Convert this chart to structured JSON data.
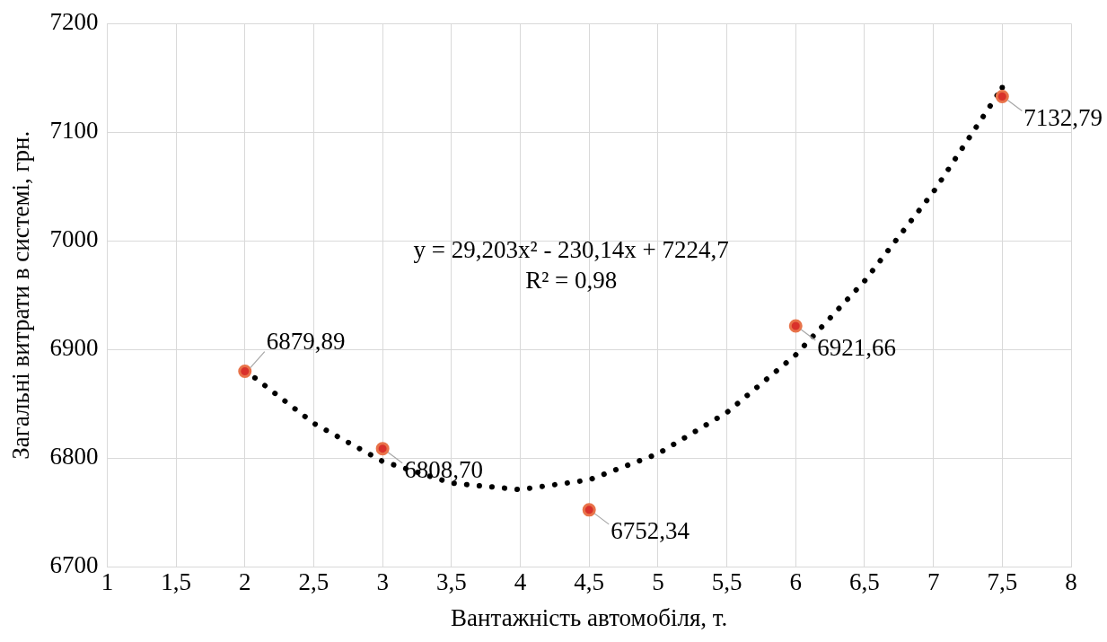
{
  "chart_data": {
    "type": "scatter",
    "xlabel": "Вантажність автомобіля, т.",
    "ylabel": "Загальні витрати в системі, грн.",
    "annotations": [
      "y = 29,203x² - 230,14x + 7224,7",
      "R² = 0,98"
    ],
    "xlim": [
      1,
      8
    ],
    "xticks": [
      1,
      {
        "value": 1.5,
        "label": "1,5"
      },
      2,
      {
        "value": 2.5,
        "label": "2,5"
      },
      3,
      {
        "value": 3.5,
        "label": "3,5"
      },
      4,
      {
        "value": 4.5,
        "label": "4,5"
      },
      5,
      {
        "value": 5.5,
        "label": "5,5"
      },
      6,
      {
        "value": 6.5,
        "label": "6,5"
      },
      7,
      {
        "value": 7.5,
        "label": "7,5"
      },
      8
    ],
    "ylim": [
      6700,
      7200
    ],
    "yticks": [
      6700,
      6800,
      6900,
      7000,
      7100,
      7200
    ],
    "grid": true,
    "legend": false,
    "series": [
      {
        "type": "line",
        "color": "#000000",
        "line_style": "dotted",
        "marker": "none",
        "x": [
          2,
          2.5,
          3,
          3.5,
          4,
          4.5,
          5,
          5.5,
          6,
          6.5,
          7,
          7.5
        ],
        "values": [
          6881,
          6832,
          6797,
          6777,
          6771,
          6780,
          6804,
          6842,
          6895,
          6963,
          7045,
          7141
        ]
      },
      {
        "color": "#e8734a",
        "marker": "circle",
        "x": [
          2,
          3,
          4.5,
          6,
          7.5
        ],
        "values": [
          6879.89,
          6808.7,
          6752.34,
          6921.66,
          7132.79
        ],
        "value_labels": [
          "6879,89",
          "6808,70",
          "6752,34",
          "6921,66",
          "7132,79"
        ]
      }
    ]
  }
}
